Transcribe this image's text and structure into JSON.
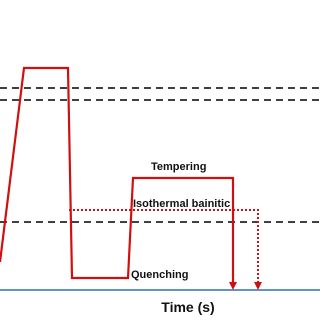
{
  "labels": {
    "tempering": "Tempering",
    "isothermal": "Isothermal bainitic",
    "quenching": "Quenching"
  },
  "x_axis_label": "Time (s)"
}
